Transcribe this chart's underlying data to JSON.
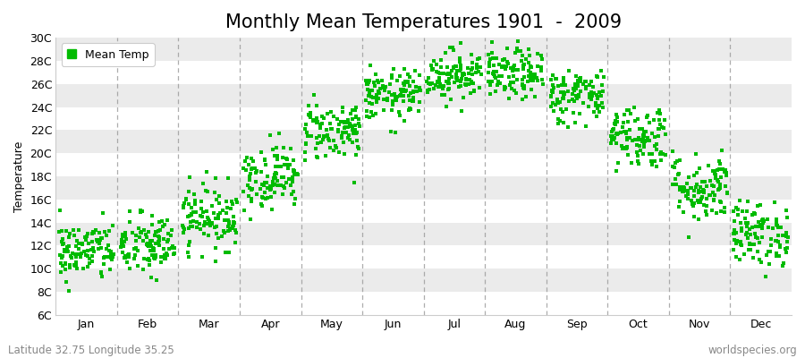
{
  "title": "Monthly Mean Temperatures 1901  -  2009",
  "ylabel": "Temperature",
  "dot_color": "#00BB00",
  "background_color": "#ffffff",
  "stripe_color": "#ebebeb",
  "grid_color": "#999999",
  "years": 109,
  "monthly_means": [
    11.5,
    12.0,
    14.5,
    18.0,
    22.0,
    25.0,
    26.8,
    26.8,
    25.0,
    21.5,
    17.0,
    13.0
  ],
  "monthly_stds": [
    1.3,
    1.4,
    1.4,
    1.4,
    1.3,
    1.1,
    1.1,
    1.1,
    1.2,
    1.4,
    1.5,
    1.4
  ],
  "ylim_min": 6,
  "ylim_max": 30,
  "ytick_labels": [
    "6C",
    "8C",
    "10C",
    "12C",
    "14C",
    "16C",
    "18C",
    "20C",
    "22C",
    "24C",
    "26C",
    "28C",
    "30C"
  ],
  "ytick_values": [
    6,
    8,
    10,
    12,
    14,
    16,
    18,
    20,
    22,
    24,
    26,
    28,
    30
  ],
  "month_labels": [
    "Jan",
    "Feb",
    "Mar",
    "Apr",
    "May",
    "Jun",
    "Jul",
    "Aug",
    "Sep",
    "Oct",
    "Nov",
    "Dec"
  ],
  "legend_label": "Mean Temp",
  "footer_left": "Latitude 32.75 Longitude 35.25",
  "footer_right": "worldspecies.org",
  "title_fontsize": 15,
  "axis_fontsize": 9,
  "footer_fontsize": 8.5,
  "marker_size": 3.5
}
